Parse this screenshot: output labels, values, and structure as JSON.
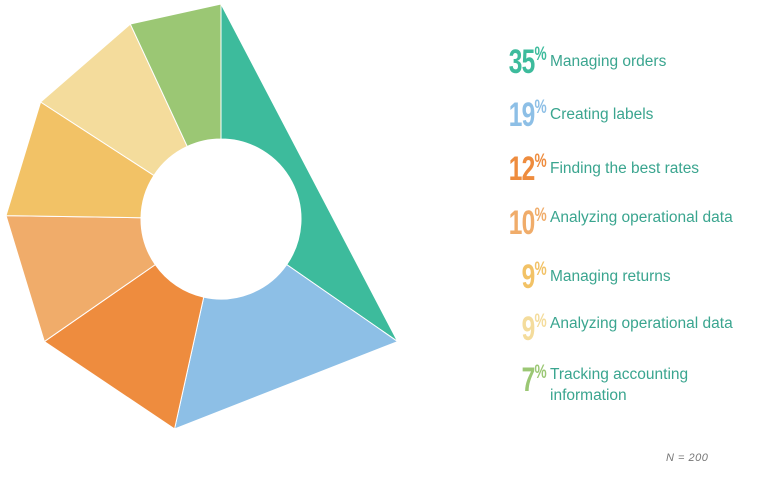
{
  "chart_data": {
    "type": "pie",
    "categories": [
      "Managing orders",
      "Creating labels",
      "Finding the best rates",
      "Analyzing operational data",
      "Managing returns",
      "Analyzing operational data",
      "Tracking accounting information"
    ],
    "values": [
      35,
      19,
      12,
      10,
      9,
      9,
      7
    ],
    "value_labels": [
      "35",
      "19",
      "12",
      "10",
      "9",
      "9",
      "7"
    ],
    "percent_sign": "%",
    "colors": [
      "#3dbb9c",
      "#8dbfe6",
      "#ee8c3e",
      "#f0ac6a",
      "#f2c266",
      "#f4dc9c",
      "#9bc774"
    ],
    "legend_placement": "right",
    "donut": true
  },
  "footnote": "N = 200"
}
